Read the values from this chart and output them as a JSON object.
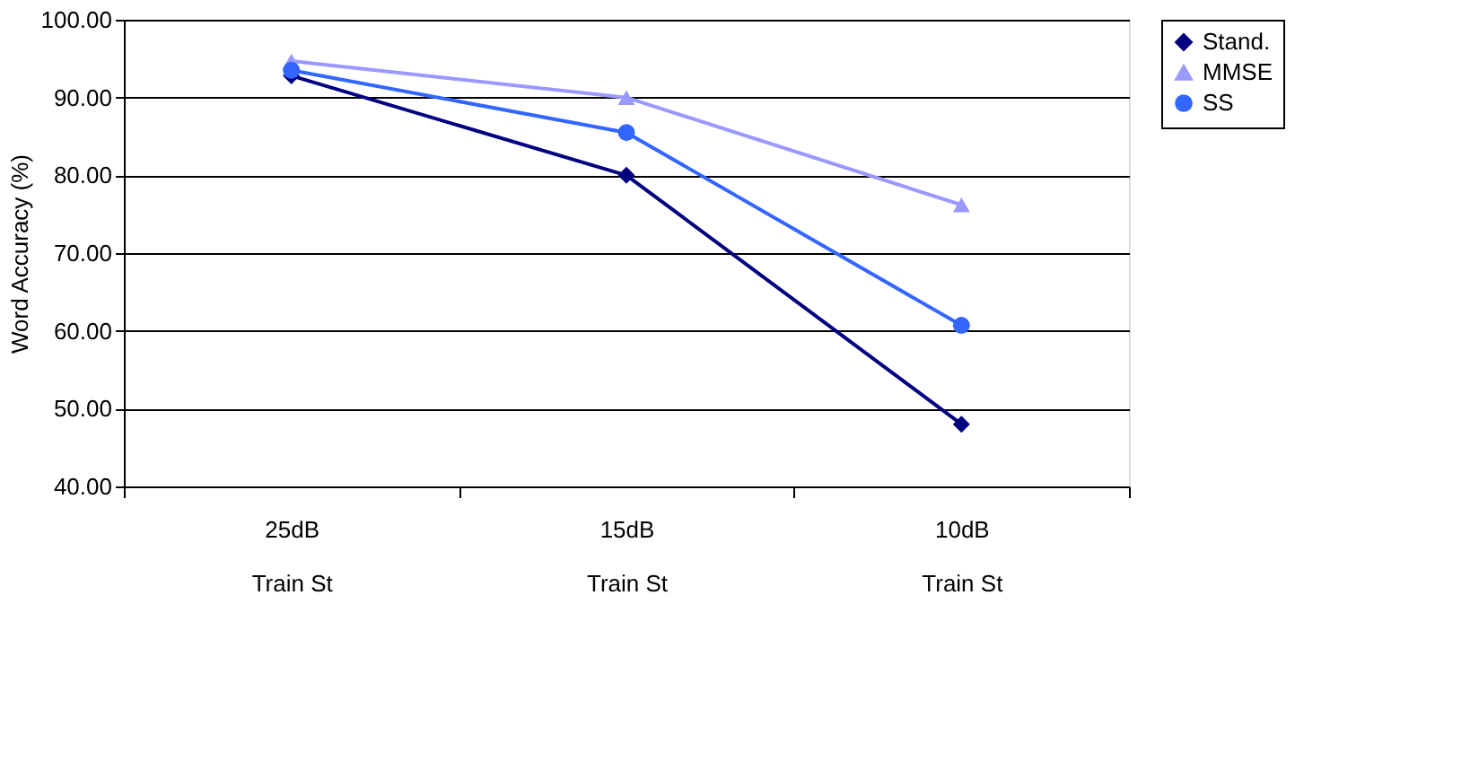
{
  "chart_data": {
    "type": "line",
    "ylabel": "Word Accuracy (%)",
    "categories": [
      "25dB\nTrain St",
      "15dB\nTrain St",
      "10dB\nTrain St"
    ],
    "series": [
      {
        "name": "Stand.",
        "color": "#000080",
        "marker": "diamond",
        "values": [
          92.8,
          80,
          48
        ]
      },
      {
        "name": "MMSE",
        "color": "#9999ff",
        "marker": "triangle",
        "values": [
          94.7,
          90,
          76.2
        ]
      },
      {
        "name": "SS",
        "color": "#3366ff",
        "marker": "circle",
        "values": [
          93.5,
          85.5,
          60.7
        ]
      }
    ],
    "ylim": [
      40,
      100
    ],
    "yticks": [
      {
        "value": 40,
        "label": "40.00"
      },
      {
        "value": 50,
        "label": "50.00"
      },
      {
        "value": 60,
        "label": "60.00"
      },
      {
        "value": 70,
        "label": "70.00"
      },
      {
        "value": 80,
        "label": "80.00"
      },
      {
        "value": 90,
        "label": "90.00"
      },
      {
        "value": 100,
        "label": "100.00"
      }
    ],
    "grid": "y",
    "legend": "right",
    "line_style": "solid"
  }
}
